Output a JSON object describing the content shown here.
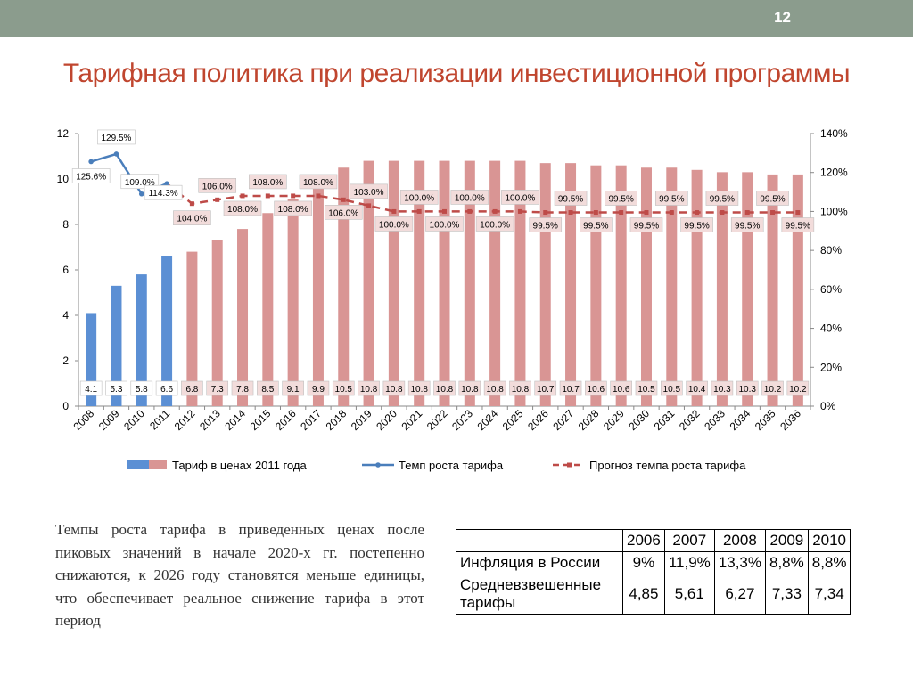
{
  "slide": {
    "page_number": "12",
    "title": "Тарифная политика при реализации инвестиционной программы"
  },
  "chart_data": {
    "type": "bar",
    "categories": [
      "2008",
      "2009",
      "2010",
      "2011",
      "2012",
      "2013",
      "2014",
      "2015",
      "2016",
      "2017",
      "2018",
      "2019",
      "2020",
      "2021",
      "2022",
      "2023",
      "2024",
      "2025",
      "2026",
      "2027",
      "2028",
      "2029",
      "2030",
      "2031",
      "2032",
      "2033",
      "2034",
      "2035",
      "2036"
    ],
    "series": [
      {
        "name": "Тариф в ценах 2011 года",
        "type": "bar",
        "axis": "left",
        "values": [
          4.1,
          5.3,
          5.8,
          6.6,
          6.8,
          7.3,
          7.8,
          8.5,
          9.1,
          9.9,
          10.5,
          10.8,
          10.8,
          10.8,
          10.8,
          10.8,
          10.8,
          10.8,
          10.7,
          10.7,
          10.6,
          10.6,
          10.5,
          10.5,
          10.4,
          10.3,
          10.3,
          10.2,
          10.2
        ],
        "labels": [
          "4.1",
          "5.3",
          "5.8",
          "6.6",
          "6.8",
          "7.3",
          "7.8",
          "8.5",
          "9.1",
          "9.9",
          "10.5",
          "10.8",
          "10.8",
          "10.8",
          "10.8",
          "10.8",
          "10.8",
          "10.8",
          "10.7",
          "10.7",
          "10.6",
          "10.6",
          "10.5",
          "10.5",
          "10.4",
          "10.3",
          "10.3",
          "10.2",
          "10.2"
        ],
        "colors": {
          "actual": "#5b8fd4",
          "forecast": "#d99594"
        },
        "actual_count": 4
      },
      {
        "name": "Темп роста тарифа",
        "type": "line",
        "axis": "right",
        "color": "#4a7ebb",
        "x": [
          "2008",
          "2009",
          "2010",
          "2011"
        ],
        "values": [
          125.6,
          129.5,
          109.0,
          114.3
        ],
        "labels": [
          "125.6%",
          "129.5%",
          "109.0%",
          "114.3%"
        ]
      },
      {
        "name": "Прогноз темпа роста тарифа",
        "type": "line-dashed",
        "axis": "right",
        "color": "#be4b48",
        "x": [
          "2011",
          "2012",
          "2013",
          "2014",
          "2015",
          "2016",
          "2017",
          "2018",
          "2019",
          "2020",
          "2021",
          "2022",
          "2023",
          "2024",
          "2025",
          "2026",
          "2027",
          "2028",
          "2029",
          "2030",
          "2031",
          "2032",
          "2033",
          "2034",
          "2035",
          "2036"
        ],
        "values": [
          114.3,
          104.0,
          106.0,
          108.0,
          108.0,
          108.0,
          108.0,
          106.0,
          103.0,
          100.0,
          100.0,
          100.0,
          100.0,
          100.0,
          100.0,
          99.5,
          99.5,
          99.5,
          99.5,
          99.5,
          99.5,
          99.5,
          99.5,
          99.5,
          99.5,
          99.5
        ],
        "labels": [
          "",
          "104.0%",
          "106.0%",
          "108.0%",
          "108.0%",
          "108.0%",
          "108.0%",
          "106.0%",
          "103.0%",
          "100.0%",
          "100.0%",
          "100.0%",
          "100.0%",
          "100.0%",
          "100.0%",
          "99.5%",
          "99.5%",
          "99.5%",
          "99.5%",
          "99.5%",
          "99.5%",
          "99.5%",
          "99.5%",
          "99.5%",
          "99.5%",
          "99.5%"
        ]
      }
    ],
    "y_left": {
      "min": 0,
      "max": 12,
      "ticks": [
        "0",
        "2",
        "4",
        "6",
        "8",
        "10",
        "12"
      ]
    },
    "y_right": {
      "min": 0,
      "max": 140,
      "ticks": [
        "0%",
        "20%",
        "40%",
        "60%",
        "80%",
        "100%",
        "120%",
        "140%"
      ]
    },
    "grid": false,
    "legend_position": "bottom"
  },
  "body_text": "Темпы роста  тарифа в приведенных ценах после пиковых значений в начале 2020-х гг. постепенно снижаются, к 2026 году становятся меньше единицы, что обеспечивает реальное снижение тарифа в этот период",
  "inflation_table": {
    "years": [
      "2006",
      "2007",
      "2008",
      "2009",
      "2010"
    ],
    "rows": [
      {
        "label": "Инфляция в России",
        "values": [
          "9%",
          "11,9%",
          "13,3%",
          "8,8%",
          "8,8%"
        ]
      },
      {
        "label": "Средневзвешенные тарифы",
        "values": [
          "4,85",
          "5,61",
          "6,27",
          "7,33",
          "7,34"
        ]
      }
    ]
  }
}
